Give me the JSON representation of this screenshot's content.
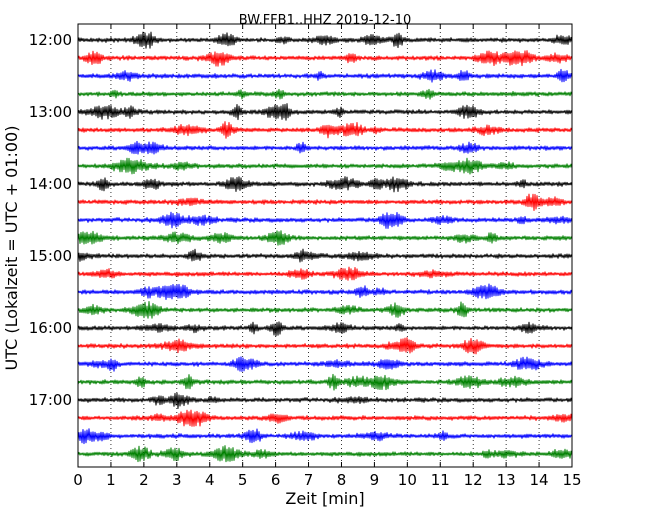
{
  "chart_data": {
    "type": "line",
    "title": "BW.FFB1..HHZ 2019-12-10",
    "xlabel": "Zeit  [min]",
    "ylabel": "UTC (Lokalzeit = UTC + 01:00)",
    "xlim": [
      0,
      15
    ],
    "x_ticks": [
      "0",
      "1",
      "2",
      "3",
      "4",
      "5",
      "6",
      "7",
      "8",
      "9",
      "10",
      "11",
      "12",
      "13",
      "14",
      "15"
    ],
    "y_ticks": [
      "12:00",
      "13:00",
      "14:00",
      "15:00",
      "16:00",
      "17:00"
    ],
    "trace_start": "12:00",
    "trace_interval_min": 15,
    "trace_count": 24,
    "trace_colors": [
      "#000000",
      "#ff0000",
      "#0000ff",
      "#008000"
    ],
    "grid": "vertical dotted",
    "legend": "none"
  }
}
